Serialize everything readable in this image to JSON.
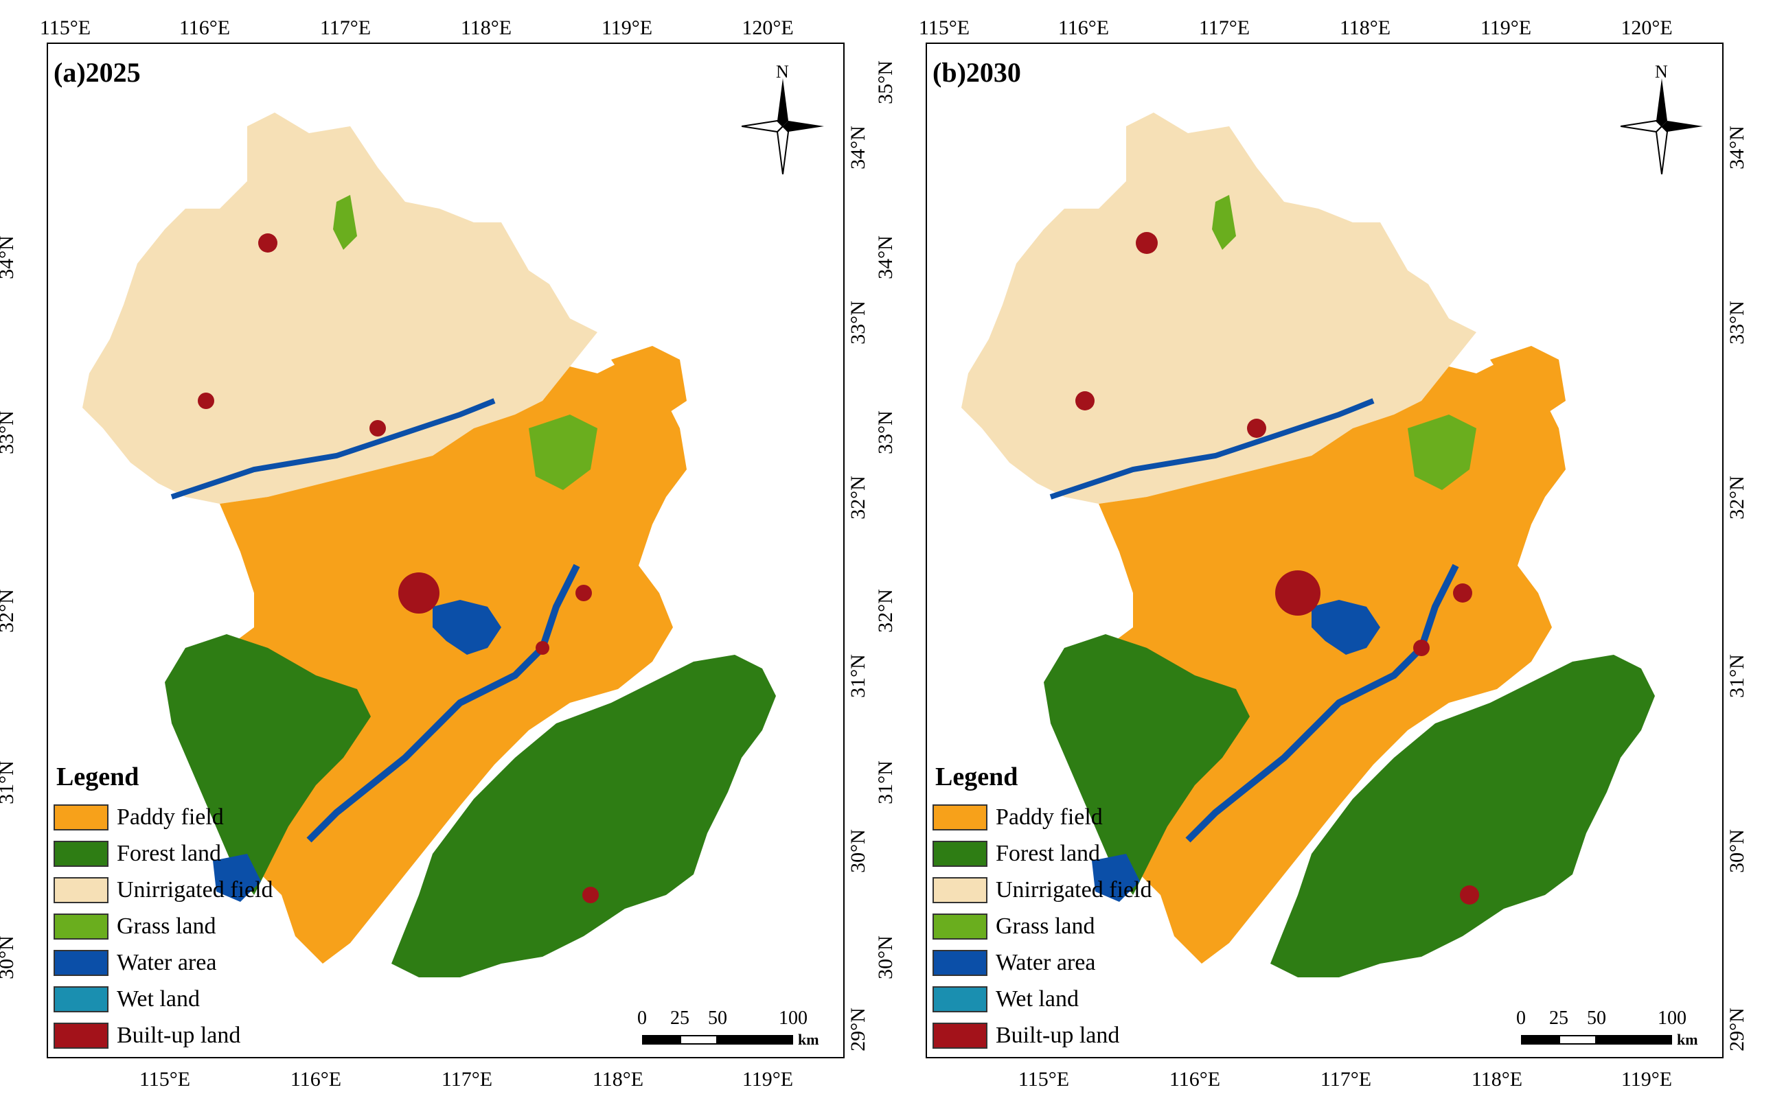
{
  "legend": {
    "title": "Legend",
    "items": [
      {
        "label": "Paddy field",
        "color": "#F7A11A"
      },
      {
        "label": "Forest land",
        "color": "#2E7D14"
      },
      {
        "label": "Unirrigated field",
        "color": "#F6E0B6"
      },
      {
        "label": "Grass land",
        "color": "#6AAE1E"
      },
      {
        "label": "Water area",
        "color": "#0B4FA8"
      },
      {
        "label": "Wet land",
        "color": "#1A8FB0"
      },
      {
        "label": "Built-up land",
        "color": "#A3121A"
      }
    ]
  },
  "panels": [
    {
      "title": "(a)2025",
      "north": "N",
      "top_ticks": [
        "115°E",
        "116°E",
        "117°E",
        "118°E",
        "119°E",
        "120°E"
      ],
      "bottom_ticks": [
        "115°E",
        "116°E",
        "117°E",
        "118°E",
        "119°E"
      ],
      "left_ticks": [
        "34°N",
        "33°N",
        "32°N",
        "31°N",
        "30°N"
      ],
      "right_ticks": [
        "34°N",
        "33°N",
        "32°N",
        "31°N",
        "30°N",
        "29°N"
      ],
      "scale": {
        "labels": [
          "0",
          "25",
          "50",
          "100"
        ],
        "unit": "km"
      }
    },
    {
      "title": "(b)2030",
      "north": "N",
      "top_ticks": [
        "115°E",
        "116°E",
        "117°E",
        "118°E",
        "119°E",
        "120°E"
      ],
      "bottom_ticks": [
        "115°E",
        "116°E",
        "117°E",
        "118°E",
        "119°E"
      ],
      "left_ticks": [
        "35°N",
        "34°N",
        "33°N",
        "32°N",
        "31°N",
        "30°N"
      ],
      "right_ticks": [
        "34°N",
        "33°N",
        "32°N",
        "31°N",
        "30°N",
        "29°N"
      ],
      "scale": {
        "labels": [
          "0",
          "25",
          "50",
          "100"
        ],
        "unit": "km"
      }
    }
  ]
}
